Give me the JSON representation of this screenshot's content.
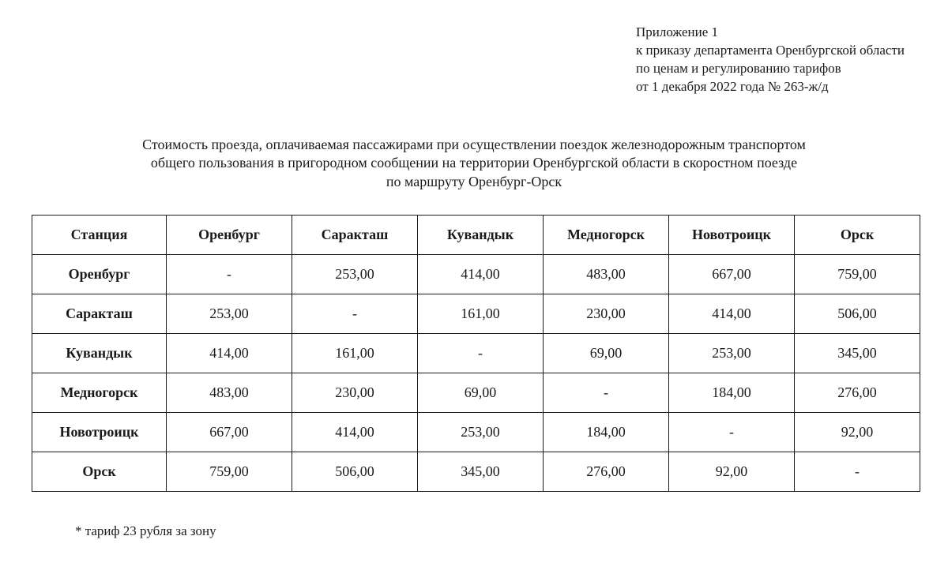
{
  "header": {
    "line1": "Приложение 1",
    "line2": "к приказу департамента Оренбургской области",
    "line3": "по ценам и регулированию тарифов",
    "line4": "от 1 декабря 2022 года № 263-ж/д"
  },
  "title": {
    "line1": "Стоимость проезда, оплачиваемая пассажирами при осуществлении поездок железнодорожным транспортом",
    "line2": "общего пользования в пригородном сообщении на территории Оренбургской области в скоростном поезде",
    "line3": "по маршруту Оренбург-Орск"
  },
  "table": {
    "corner": "Станция",
    "columns": [
      "Оренбург",
      "Саракташ",
      "Кувандык",
      "Медногорск",
      "Новотроицк",
      "Орск"
    ],
    "rows": [
      {
        "name": "Оренбург",
        "cells": [
          "-",
          "253,00",
          "414,00",
          "483,00",
          "667,00",
          "759,00"
        ]
      },
      {
        "name": "Саракташ",
        "cells": [
          "253,00",
          "-",
          "161,00",
          "230,00",
          "414,00",
          "506,00"
        ]
      },
      {
        "name": "Кувандык",
        "cells": [
          "414,00",
          "161,00",
          "-",
          "69,00",
          "253,00",
          "345,00"
        ]
      },
      {
        "name": "Медногорск",
        "cells": [
          "483,00",
          "230,00",
          "69,00",
          "-",
          "184,00",
          "276,00"
        ]
      },
      {
        "name": "Новотроицк",
        "cells": [
          "667,00",
          "414,00",
          "253,00",
          "184,00",
          "-",
          "92,00"
        ]
      },
      {
        "name": "Орск",
        "cells": [
          "759,00",
          "506,00",
          "345,00",
          "276,00",
          "92,00",
          "-"
        ]
      }
    ]
  },
  "footnote": "* тариф 23 рубля за зону"
}
